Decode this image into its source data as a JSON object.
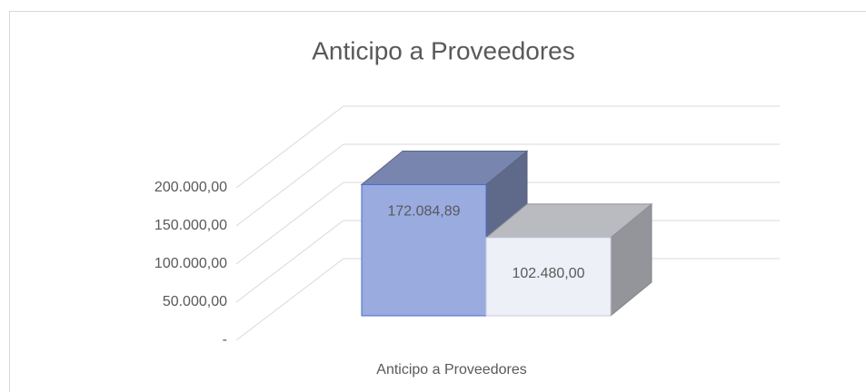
{
  "chart_data": {
    "type": "bar3d",
    "title": "Anticipo a Proveedores",
    "categories": [
      "Anticipo a Proveedores"
    ],
    "series": [
      {
        "color": "#9aabe0",
        "values": [
          172084.89
        ],
        "value_labels": [
          "172.084,89"
        ]
      },
      {
        "color": "#eef0f8",
        "values": [
          102480
        ],
        "value_labels": [
          "102.480,00"
        ]
      }
    ],
    "ylim": [
      0,
      200000
    ],
    "yticks": [
      {
        "value": 0,
        "label": "-"
      },
      {
        "value": 50000,
        "label": "50.000,00"
      },
      {
        "value": 100000,
        "label": "100.000,00"
      },
      {
        "value": 150000,
        "label": "150.000,00"
      },
      {
        "value": 200000,
        "label": "200.000,00"
      }
    ],
    "grid": true
  }
}
